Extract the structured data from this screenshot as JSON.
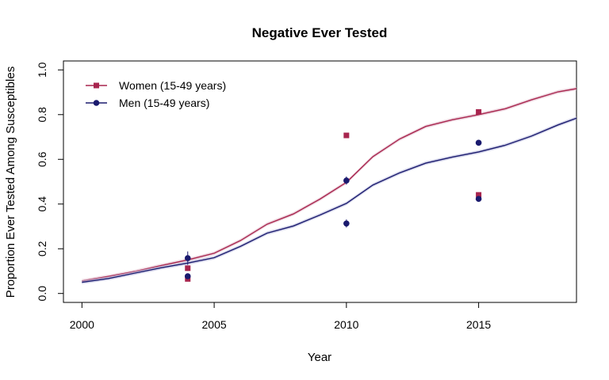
{
  "chart_data": {
    "type": "line",
    "title": "Negative Ever Tested",
    "xlabel": "Year",
    "ylabel": "Proportion Ever Tested Among Susceptibles",
    "xlim": [
      1999.3,
      2018.7
    ],
    "ylim": [
      -0.04,
      1.04
    ],
    "x_ticks": [
      2000,
      2005,
      2010,
      2015
    ],
    "y_ticks": [
      0.0,
      0.2,
      0.4,
      0.6,
      0.8,
      1.0
    ],
    "x_tick_labels": [
      "2000",
      "2005",
      "2010",
      "2015"
    ],
    "y_tick_labels": [
      "0.0",
      "0.2",
      "0.4",
      "0.6",
      "0.8",
      "1.0"
    ],
    "legend_position": "top-left",
    "series": [
      {
        "name": "Women (15-49 years)",
        "color": "#a8254e",
        "band_color": "#e3bccb",
        "marker": "square",
        "x": [
          2000,
          2001,
          2002,
          2003,
          2004,
          2005,
          2006,
          2007,
          2008,
          2009,
          2010,
          2011,
          2012,
          2013,
          2014,
          2015,
          2016,
          2017,
          2018,
          2018.7
        ],
        "y": [
          0.056,
          0.076,
          0.098,
          0.125,
          0.15,
          0.18,
          0.237,
          0.31,
          0.356,
          0.422,
          0.497,
          0.612,
          0.69,
          0.747,
          0.777,
          0.8,
          0.826,
          0.866,
          0.902,
          0.916
        ],
        "points": [
          {
            "x": 2004,
            "y": 0.113,
            "err": 0.012
          },
          {
            "x": 2004,
            "y": 0.065,
            "err": 0.01
          },
          {
            "x": 2010,
            "y": 0.707,
            "err": 0.012
          },
          {
            "x": 2015,
            "y": 0.812,
            "err": 0.01
          },
          {
            "x": 2015,
            "y": 0.441,
            "err": 0.01
          }
        ]
      },
      {
        "name": "Men (15-49 years)",
        "color": "#1a1a6e",
        "band_color": "#b9bbdc",
        "marker": "circle",
        "x": [
          2000,
          2001,
          2002,
          2003,
          2004,
          2005,
          2006,
          2007,
          2008,
          2009,
          2010,
          2011,
          2012,
          2013,
          2014,
          2015,
          2016,
          2017,
          2018,
          2018.7
        ],
        "y": [
          0.05,
          0.067,
          0.091,
          0.115,
          0.136,
          0.16,
          0.211,
          0.27,
          0.302,
          0.351,
          0.403,
          0.485,
          0.539,
          0.583,
          0.61,
          0.633,
          0.663,
          0.704,
          0.754,
          0.784
        ],
        "points": [
          {
            "x": 2004,
            "y": 0.158,
            "err": 0.03
          },
          {
            "x": 2004,
            "y": 0.077,
            "err": 0.012
          },
          {
            "x": 2010,
            "y": 0.505,
            "err": 0.018
          },
          {
            "x": 2010,
            "y": 0.313,
            "err": 0.018
          },
          {
            "x": 2015,
            "y": 0.674,
            "err": 0.012
          },
          {
            "x": 2015,
            "y": 0.423,
            "err": 0.012
          }
        ]
      }
    ]
  }
}
